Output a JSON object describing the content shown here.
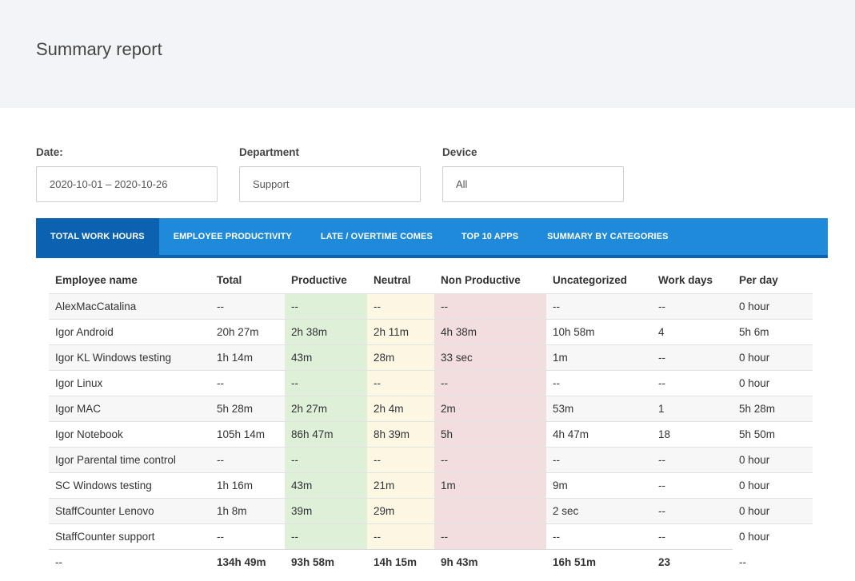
{
  "page": {
    "title": "Summary report"
  },
  "filters": {
    "date": {
      "label": "Date:",
      "value": "2020-10-01 – 2020-10-26"
    },
    "department": {
      "label": "Department",
      "value": "Support"
    },
    "device": {
      "label": "Device",
      "value": "All"
    }
  },
  "tabs": [
    {
      "label": "TOTAL WORK HOURS",
      "active": true
    },
    {
      "label": "EMPLOYEE PRODUCTIVITY",
      "active": false
    },
    {
      "label": "LATE / OVERTIME COMES",
      "active": false
    },
    {
      "label": "TOP 10 APPS",
      "active": false
    },
    {
      "label": "SUMMARY BY CATEGORIES",
      "active": false
    }
  ],
  "table": {
    "headers": [
      "Employee name",
      "Total",
      "Productive",
      "Neutral",
      "Non Productive",
      "Uncategorized",
      "Work days",
      "Per day"
    ],
    "rows": [
      [
        "AlexMacCatalina",
        "--",
        "--",
        "--",
        "--",
        "--",
        "--",
        "0 hour"
      ],
      [
        "Igor Android",
        "20h 27m",
        "2h 38m",
        "2h 11m",
        "4h 38m",
        "10h 58m",
        "4",
        "5h 6m"
      ],
      [
        "Igor KL Windows testing",
        "1h 14m",
        "43m",
        "28m",
        "33 sec",
        "1m",
        "--",
        "0 hour"
      ],
      [
        "Igor Linux",
        "--",
        "--",
        "--",
        "--",
        "--",
        "--",
        "0 hour"
      ],
      [
        "Igor MAC",
        "5h 28m",
        "2h 27m",
        "2h 4m",
        "2m",
        "53m",
        "1",
        "5h 28m"
      ],
      [
        "Igor Notebook",
        "105h 14m",
        "86h 47m",
        "8h 39m",
        "5h",
        "4h 47m",
        "18",
        "5h 50m"
      ],
      [
        "Igor Parental time control",
        "--",
        "--",
        "--",
        "--",
        "--",
        "--",
        "0 hour"
      ],
      [
        "SC Windows testing",
        "1h 16m",
        "43m",
        "21m",
        "1m",
        "9m",
        "--",
        "0 hour"
      ],
      [
        "StaffCounter Lenovo",
        "1h 8m",
        "39m",
        "29m",
        "",
        "2 sec",
        "--",
        "0 hour"
      ],
      [
        "StaffCounter support",
        "--",
        "--",
        "--",
        "--",
        "--",
        "--",
        "0 hour"
      ]
    ],
    "totals": [
      "--",
      "134h 49m",
      "93h 58m",
      "14h 15m",
      "9h 43m",
      "16h 51m",
      "23",
      "--"
    ]
  },
  "colors": {
    "tab_bar": "#1f8ad9",
    "tab_active": "#0a62b0",
    "productive_cell": "#def0d8",
    "neutral_cell": "#fcf7e3",
    "non_productive_cell": "#f2dede"
  }
}
